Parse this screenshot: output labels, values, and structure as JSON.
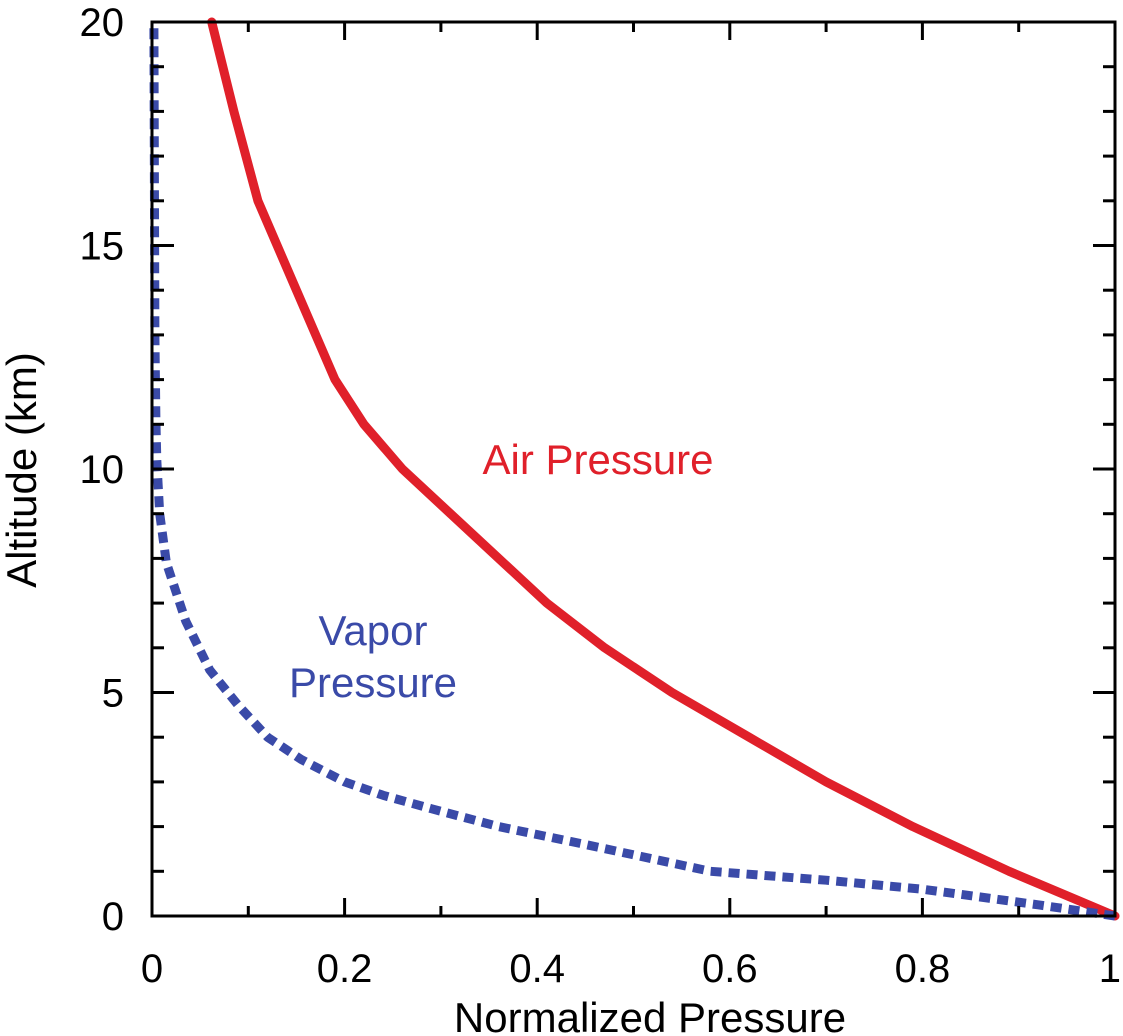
{
  "chart_data": {
    "type": "line",
    "xlabel": "Normalized Pressure",
    "ylabel": "Altitude (km)",
    "xlim": [
      0,
      1
    ],
    "ylim": [
      0,
      20
    ],
    "xticks": [
      "0",
      "0.2",
      "0.4",
      "0.6",
      "0.8",
      "1"
    ],
    "yticks": [
      "0",
      "5",
      "10",
      "15",
      "20"
    ],
    "grid": false,
    "legend": "none",
    "series": [
      {
        "name": "Air Pressure",
        "color": "#e0202a",
        "line_style": "solid",
        "label_lines": [
          "Air Pressure"
        ],
        "x": [
          1.0,
          0.89,
          0.79,
          0.7,
          0.62,
          0.54,
          0.47,
          0.41,
          0.36,
          0.31,
          0.26,
          0.22,
          0.19,
          0.15,
          0.11,
          0.085,
          0.062
        ],
        "y": [
          0,
          1,
          2,
          3,
          4,
          5,
          6,
          7,
          8,
          9,
          10,
          11,
          12,
          14,
          16,
          18,
          20
        ]
      },
      {
        "name": "Vapor Pressure",
        "color": "#3a4aa8",
        "line_style": "dashed",
        "label_lines": [
          "Vapor",
          "Pressure"
        ],
        "x": [
          1.0,
          0.92,
          0.8,
          0.7,
          0.58,
          0.45,
          0.36,
          0.29,
          0.24,
          0.2,
          0.155,
          0.12,
          0.09,
          0.06,
          0.035,
          0.015,
          0.008,
          0.005,
          0.004,
          0.003,
          0.002
        ],
        "y": [
          0,
          0.25,
          0.6,
          0.8,
          1.0,
          1.6,
          2.0,
          2.4,
          2.7,
          3.0,
          3.5,
          4.0,
          4.7,
          5.5,
          6.6,
          7.9,
          9.0,
          10.2,
          11.1,
          13.0,
          20.0
        ]
      }
    ]
  }
}
